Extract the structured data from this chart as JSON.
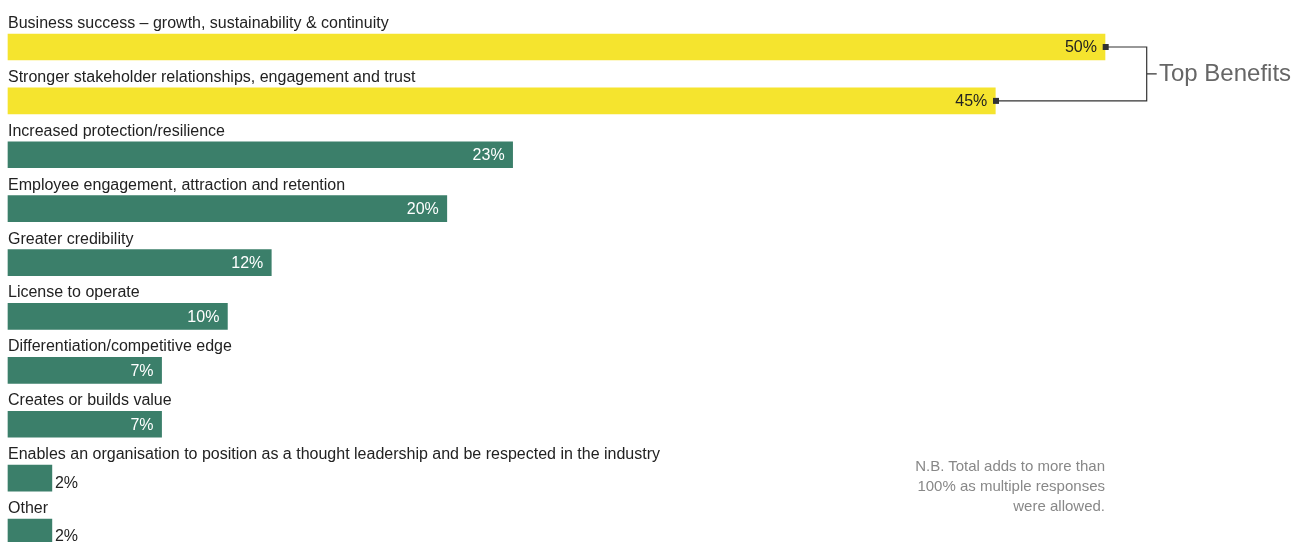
{
  "chart_data": {
    "type": "bar",
    "orientation": "horizontal",
    "categories": [
      "Business success – growth, sustainability & continuity",
      "Stronger stakeholder relationships, engagement and trust",
      "Increased protection/resilience",
      "Employee engagement, attraction and retention",
      "Greater credibility",
      "License to operate",
      "Differentiation/competitive edge",
      "Creates or builds value",
      "Enables an organisation to position as a thought leadership and be respected in the industry",
      "Other"
    ],
    "values": [
      50,
      45,
      23,
      20,
      12,
      10,
      7,
      7,
      2,
      2
    ],
    "value_labels": [
      "50%",
      "45%",
      "23%",
      "20%",
      "12%",
      "10%",
      "7%",
      "7%",
      "2%",
      "2%"
    ],
    "colors": [
      "#f5e42e",
      "#f5e42e",
      "#3b7f6a",
      "#3b7f6a",
      "#3b7f6a",
      "#3b7f6a",
      "#3b7f6a",
      "#3b7f6a",
      "#3b7f6a",
      "#3b7f6a"
    ],
    "annotations": [
      "Top Benefits",
      "N.B. Total adds to more than 100% as multiple responses were allowed."
    ],
    "legend": false
  }
}
